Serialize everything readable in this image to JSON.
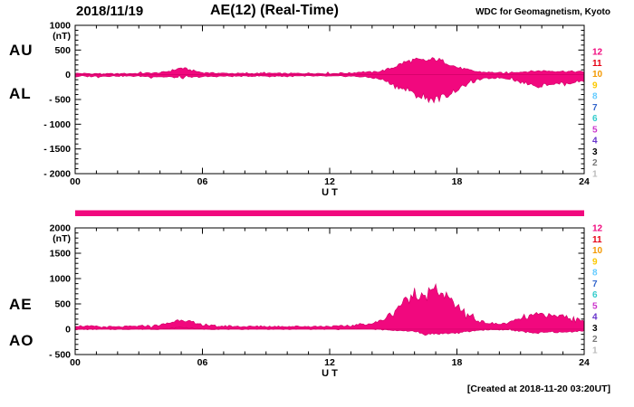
{
  "header": {
    "date": "2018/11/19",
    "title": "AE(12) (Real-Time)",
    "source": "WDC for Geomagnetism, Kyoto"
  },
  "footer": {
    "created_note": "[Created at 2018-11-20 03:20UT]"
  },
  "colors": {
    "background": "#ffffff",
    "axis": "#000000",
    "trace_fill": "#f1087e",
    "trace_edge": "#cf0066",
    "station_bar": "#f1087e"
  },
  "station_count_legend": [
    {
      "label": "12",
      "color": "#f1087e"
    },
    {
      "label": "11",
      "color": "#e60012"
    },
    {
      "label": "10",
      "color": "#f39800"
    },
    {
      "label": "9",
      "color": "#fcc800"
    },
    {
      "label": "8",
      "color": "#66ccff"
    },
    {
      "label": "7",
      "color": "#3366cc"
    },
    {
      "label": "6",
      "color": "#33cccc"
    },
    {
      "label": "5",
      "color": "#cc33cc"
    },
    {
      "label": "4",
      "color": "#6633cc"
    },
    {
      "label": "3",
      "color": "#000000"
    },
    {
      "label": "2",
      "color": "#777777"
    },
    {
      "label": "1",
      "color": "#bbbbbb"
    }
  ],
  "chart_data": [
    {
      "type": "area",
      "panel": "top",
      "x_start_hours": 0,
      "x_step_hours": 0.5,
      "series": [
        {
          "name": "AU",
          "values": [
            30,
            25,
            25,
            20,
            20,
            25,
            30,
            35,
            40,
            80,
            140,
            90,
            45,
            35,
            30,
            28,
            25,
            28,
            30,
            28,
            25,
            28,
            30,
            28,
            25,
            30,
            35,
            60,
            50,
            80,
            150,
            250,
            300,
            280,
            320,
            250,
            150,
            100,
            60,
            50,
            40,
            50,
            60,
            70,
            80,
            75,
            70,
            65,
            60
          ]
        },
        {
          "name": "AL",
          "values": [
            -40,
            -35,
            -30,
            -28,
            -25,
            -28,
            -30,
            -35,
            -40,
            -50,
            -60,
            -50,
            -40,
            -35,
            -30,
            -30,
            -28,
            -26,
            -25,
            -28,
            -30,
            -28,
            -25,
            -28,
            -30,
            -30,
            -30,
            -40,
            -60,
            -100,
            -200,
            -300,
            -400,
            -480,
            -500,
            -420,
            -300,
            -200,
            -100,
            -70,
            -60,
            -80,
            -150,
            -200,
            -220,
            -180,
            -200,
            -150,
            -120
          ]
        }
      ],
      "ylim": [
        -2000,
        1000
      ],
      "yticks": [
        1000,
        500,
        0,
        -500,
        -1000,
        -1500,
        -2000
      ],
      "ytick_labels": [
        "1000",
        "500",
        "0",
        "- 500",
        "- 1000",
        "- 1500",
        "- 2000"
      ],
      "ylabel": "(nT)",
      "xticks": [
        0,
        6,
        12,
        18,
        24
      ],
      "xtick_labels": [
        "00",
        "06",
        "12",
        "18",
        "24"
      ],
      "xlabel": "U T",
      "left_labels": [
        "AU",
        "AL"
      ]
    },
    {
      "type": "area",
      "panel": "bottom",
      "x_start_hours": 0,
      "x_step_hours": 0.5,
      "series": [
        {
          "name": "AE",
          "values": [
            70,
            60,
            55,
            48,
            45,
            53,
            60,
            70,
            80,
            130,
            200,
            140,
            85,
            70,
            60,
            58,
            53,
            54,
            55,
            56,
            55,
            56,
            55,
            56,
            55,
            60,
            65,
            100,
            110,
            180,
            350,
            550,
            650,
            720,
            780,
            640,
            450,
            300,
            160,
            120,
            100,
            130,
            210,
            270,
            300,
            255,
            270,
            215,
            180
          ]
        },
        {
          "name": "AO",
          "values": [
            -5,
            -5,
            -2,
            -4,
            -2,
            -1,
            0,
            0,
            0,
            15,
            40,
            20,
            2,
            0,
            0,
            -1,
            -1,
            1,
            2,
            0,
            -2,
            0,
            2,
            0,
            -2,
            0,
            2,
            10,
            -5,
            -10,
            -25,
            -25,
            -50,
            -100,
            -90,
            -85,
            -75,
            -50,
            -20,
            -10,
            -10,
            -15,
            -45,
            -65,
            -70,
            -52,
            -65,
            -42,
            -30
          ]
        }
      ],
      "ylim": [
        -500,
        2000
      ],
      "yticks": [
        2000,
        1500,
        1000,
        500,
        0,
        -500
      ],
      "ytick_labels": [
        "2000",
        "1500",
        "1000",
        "500",
        "0",
        "- 500"
      ],
      "ylabel": "(nT)",
      "xticks": [
        0,
        6,
        12,
        18,
        24
      ],
      "xtick_labels": [
        "00",
        "06",
        "12",
        "18",
        "24"
      ],
      "xlabel": "U T",
      "left_labels": [
        "AE",
        "AO"
      ]
    }
  ]
}
